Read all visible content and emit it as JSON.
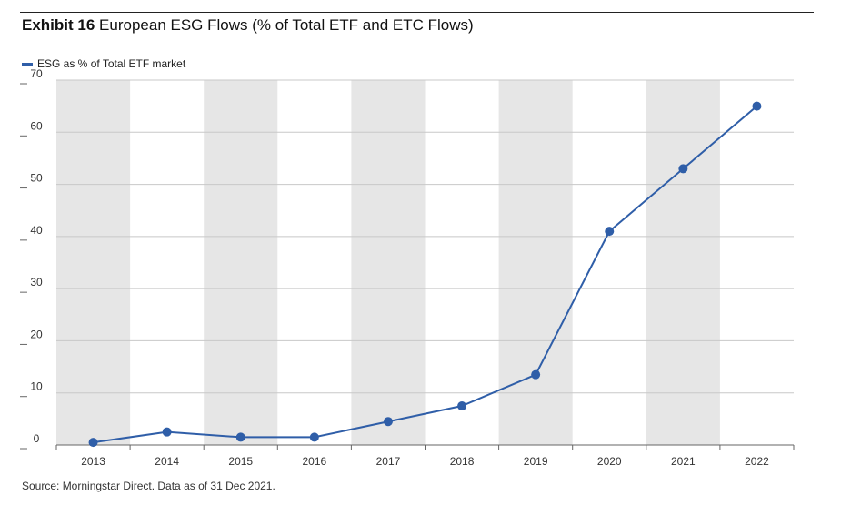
{
  "header": {
    "exhibit_label": "Exhibit 16",
    "title_text": "European ESG Flows (% of Total ETF and ETC Flows)"
  },
  "source_note": "Source: Morningstar Direct. Data as of 31 Dec 2021.",
  "colors": {
    "series": "#2f5ea8",
    "band": "#e6e6e6",
    "grid": "#c8c8c8",
    "axis": "#666666"
  },
  "chart_data": {
    "type": "line",
    "title": "European ESG Flows (% of Total ETF and ETC Flows)",
    "xlabel": "",
    "ylabel": "",
    "categories": [
      "2013",
      "2014",
      "2015",
      "2016",
      "2017",
      "2018",
      "2019",
      "2020",
      "2021",
      "2022"
    ],
    "series": [
      {
        "name": "ESG as % of Total ETF market",
        "values": [
          0.5,
          2.5,
          1.5,
          1.5,
          4.5,
          7.5,
          13.5,
          41,
          53,
          65
        ]
      }
    ],
    "ylim": [
      0,
      70
    ],
    "yticks": [
      0,
      10,
      20,
      30,
      40,
      50,
      60,
      70
    ],
    "grid": true,
    "alternating_bands": true,
    "legend_position": "top-left"
  }
}
